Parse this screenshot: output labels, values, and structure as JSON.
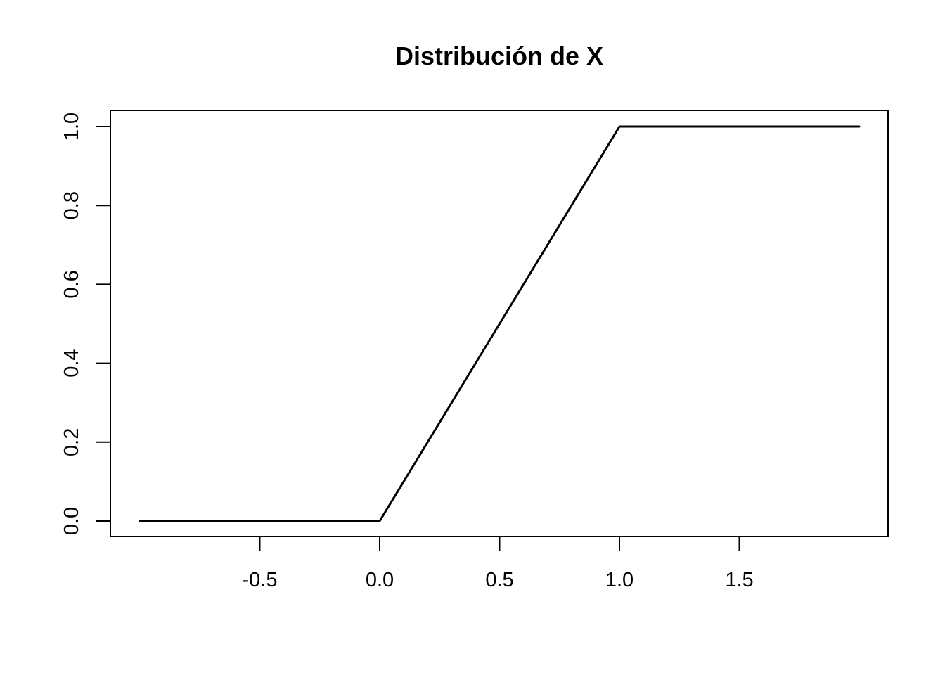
{
  "chart_data": {
    "type": "line",
    "title": "Distribución de X",
    "xlabel": "",
    "ylabel": "",
    "xlim": [
      -1.0,
      2.0
    ],
    "ylim": [
      0.0,
      1.0
    ],
    "xticks": [
      -0.5,
      0.0,
      0.5,
      1.0,
      1.5
    ],
    "xtick_labels": [
      "-0.5",
      "0.0",
      "0.5",
      "1.0",
      "1.5"
    ],
    "yticks": [
      0.0,
      0.2,
      0.4,
      0.6,
      0.8,
      1.0
    ],
    "ytick_labels": [
      "0.0",
      "0.2",
      "0.4",
      "0.6",
      "0.8",
      "1.0"
    ],
    "grid": false,
    "legend": "none",
    "series": [
      {
        "color": "#000000",
        "x": [
          -1.0,
          0.0,
          1.0,
          2.0
        ],
        "y": [
          0.0,
          0.0,
          1.0,
          1.0
        ]
      }
    ]
  }
}
